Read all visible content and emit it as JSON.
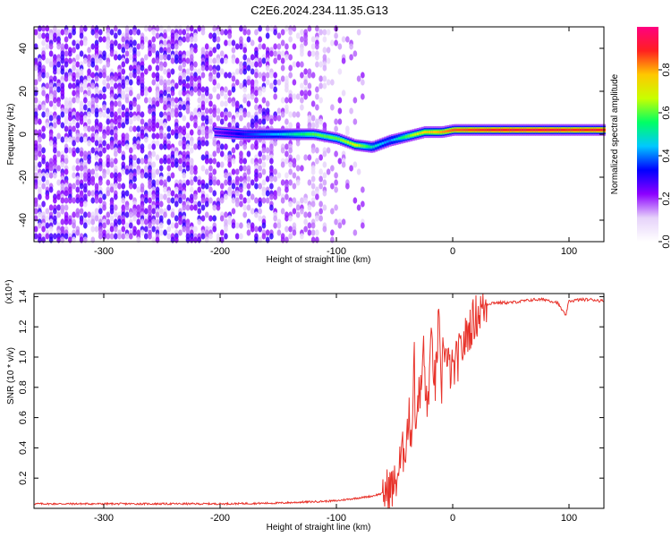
{
  "figure": {
    "title": "C2E6.2024.234.11.35.G13"
  },
  "chart_data": [
    {
      "type": "heatmap",
      "xlabel": "Height of straight line (km)",
      "ylabel": "Frequency (Hz)",
      "xlim": [
        -360,
        130
      ],
      "ylim": [
        -50,
        50
      ],
      "xticks": [
        -300,
        -200,
        -100,
        0,
        100
      ],
      "yticks": [
        -40,
        -20,
        0,
        20,
        40
      ],
      "colorbar": {
        "label": "Normalized spectral amplitude",
        "range": [
          0,
          1
        ],
        "ticks": [
          0.0,
          0.2,
          0.4,
          0.6,
          0.8
        ],
        "colors": [
          "#ffffff",
          "#e6d2fa",
          "#8c00ff",
          "#0000ff",
          "#00c8ff",
          "#00ff64",
          "#c8ff00",
          "#ffc800",
          "#ff2020",
          "#ff0080"
        ]
      },
      "signal_trace": [
        {
          "x": -205,
          "freq": 1,
          "amp": 0.25
        },
        {
          "x": -180,
          "freq": 0,
          "amp": 0.35
        },
        {
          "x": -150,
          "freq": 0,
          "amp": 0.45
        },
        {
          "x": -120,
          "freq": 0,
          "amp": 0.6
        },
        {
          "x": -100,
          "freq": -2,
          "amp": 0.6
        },
        {
          "x": -85,
          "freq": -5,
          "amp": 0.7
        },
        {
          "x": -70,
          "freq": -6,
          "amp": 0.5
        },
        {
          "x": -55,
          "freq": -3,
          "amp": 0.4
        },
        {
          "x": -40,
          "freq": -1,
          "amp": 0.6
        },
        {
          "x": -25,
          "freq": 1,
          "amp": 0.75
        },
        {
          "x": -10,
          "freq": 1,
          "amp": 0.8
        },
        {
          "x": 0,
          "freq": 2,
          "amp": 0.85
        },
        {
          "x": 40,
          "freq": 2,
          "amp": 0.9
        },
        {
          "x": 80,
          "freq": 2,
          "amp": 0.92
        },
        {
          "x": 100,
          "freq": 2,
          "amp": 0.88
        },
        {
          "x": 130,
          "freq": 2,
          "amp": 0.9
        }
      ]
    },
    {
      "type": "line",
      "xlabel": "Height of straight line (km)",
      "ylabel": "SNR (10 * v/v)",
      "y_multiplier": "(x10⁴)",
      "xlim": [
        -360,
        130
      ],
      "ylim": [
        0,
        1.42
      ],
      "xticks": [
        -300,
        -200,
        -100,
        0,
        100
      ],
      "yticks": [
        0.2,
        0.4,
        0.6,
        0.8,
        1.0,
        1.2,
        1.4
      ],
      "line_color": "#e8332b",
      "series": [
        {
          "x": [
            -360,
            -300,
            -200,
            -150,
            -100,
            -80,
            -70,
            -60,
            -50,
            -45,
            -40,
            -38,
            -35,
            -33,
            -32,
            -30,
            -28,
            -25,
            -22,
            -20,
            -18,
            -15,
            -12,
            -10,
            -8,
            -5,
            0,
            5,
            10,
            15,
            20,
            25,
            30,
            35,
            40,
            50,
            60,
            70,
            80,
            90,
            95,
            97,
            100,
            110,
            120,
            130
          ],
          "y": [
            0.03,
            0.03,
            0.03,
            0.035,
            0.05,
            0.07,
            0.08,
            0.1,
            0.15,
            0.3,
            0.45,
            0.6,
            0.5,
            1.1,
            0.4,
            0.8,
            0.7,
            1.05,
            0.6,
            0.9,
            1.1,
            0.8,
            1.25,
            0.7,
            1.15,
            0.95,
            0.9,
            1.0,
            1.1,
            1.2,
            1.27,
            1.32,
            1.35,
            1.36,
            1.36,
            1.36,
            1.37,
            1.38,
            1.38,
            1.36,
            1.3,
            1.27,
            1.37,
            1.38,
            1.38,
            1.37
          ]
        }
      ]
    }
  ]
}
